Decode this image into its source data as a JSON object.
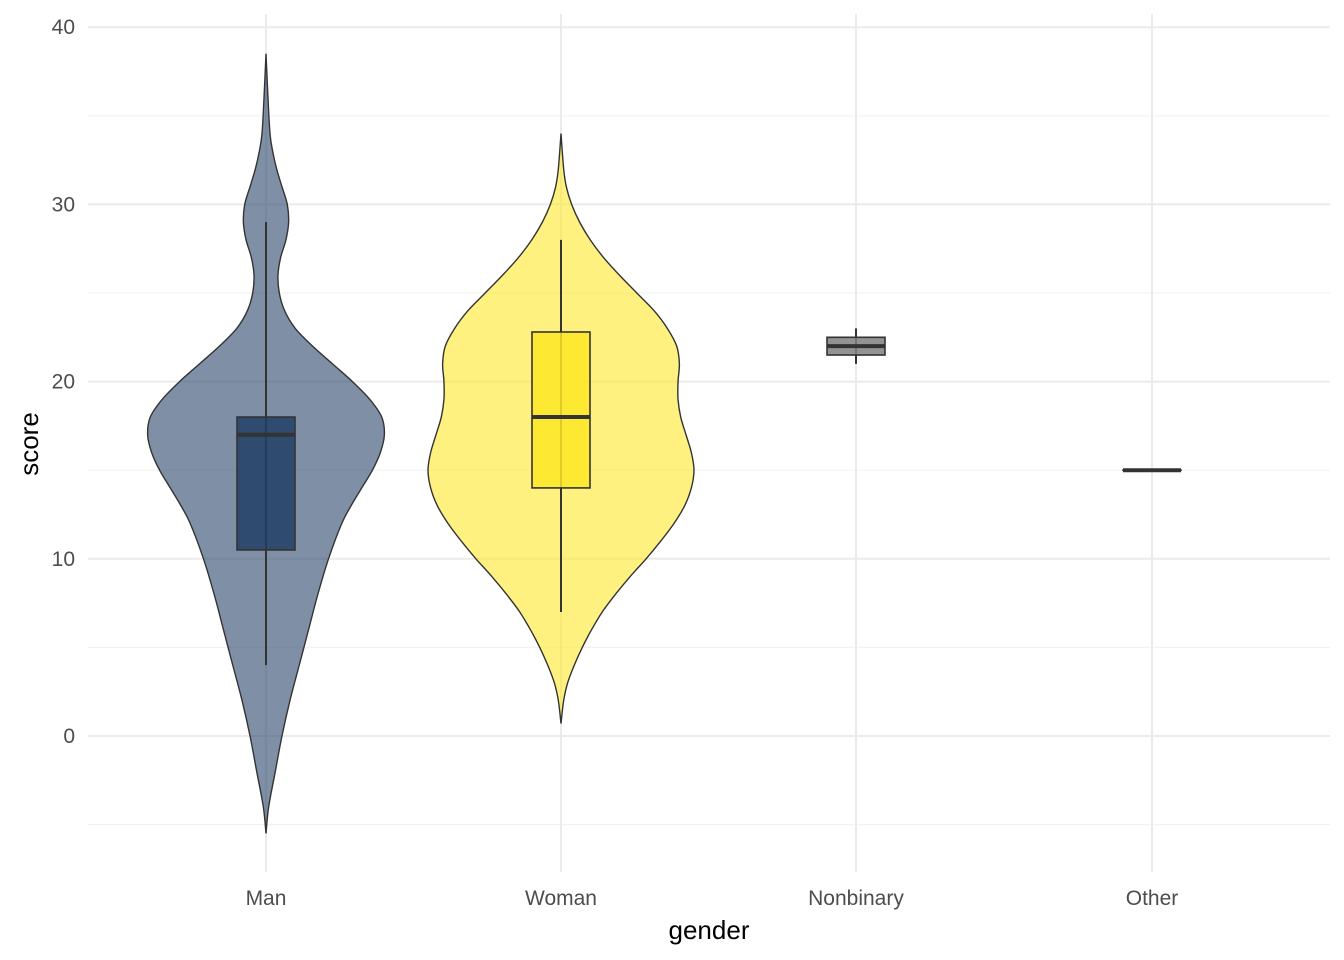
{
  "chart_data": {
    "type": "violin",
    "title": "",
    "xlabel": "gender",
    "ylabel": "score",
    "ylim": [
      -7.5,
      41.5
    ],
    "y_ticks": [
      0,
      10,
      20,
      30,
      40
    ],
    "y_minor_ticks": [
      -5,
      5,
      15,
      25,
      35
    ],
    "grid": true,
    "legend": "none",
    "categories": [
      "Man",
      "Woman",
      "Nonbinary",
      "Other"
    ],
    "groups": [
      {
        "category": "Man",
        "fill": "#223f66",
        "violin": {
          "min": -5.5,
          "max": 38.5,
          "profile": [
            [
              -5.5,
              0
            ],
            [
              -4,
              0.02
            ],
            [
              -2,
              0.07
            ],
            [
              0,
              0.12
            ],
            [
              2,
              0.18
            ],
            [
              4,
              0.25
            ],
            [
              6,
              0.32
            ],
            [
              8,
              0.39
            ],
            [
              10,
              0.47
            ],
            [
              12,
              0.57
            ],
            [
              13,
              0.64
            ],
            [
              14,
              0.72
            ],
            [
              15,
              0.8
            ],
            [
              16,
              0.86
            ],
            [
              17,
              0.89
            ],
            [
              18,
              0.87
            ],
            [
              19,
              0.78
            ],
            [
              20,
              0.65
            ],
            [
              21,
              0.5
            ],
            [
              22,
              0.35
            ],
            [
              23,
              0.22
            ],
            [
              24,
              0.14
            ],
            [
              25,
              0.1
            ],
            [
              26,
              0.09
            ],
            [
              27,
              0.11
            ],
            [
              28,
              0.15
            ],
            [
              29,
              0.17
            ],
            [
              30,
              0.16
            ],
            [
              31,
              0.12
            ],
            [
              32,
              0.08
            ],
            [
              33,
              0.05
            ],
            [
              34,
              0.03
            ],
            [
              36,
              0.015
            ],
            [
              38.5,
              0
            ]
          ]
        },
        "box": {
          "lower_whisker": 4,
          "q1": 10.5,
          "median": 17,
          "q3": 18,
          "upper_whisker": 29
        }
      },
      {
        "category": "Woman",
        "fill": "#fde725",
        "violin": {
          "min": 0.7,
          "max": 34,
          "profile": [
            [
              0.7,
              0
            ],
            [
              2,
              0.02
            ],
            [
              3,
              0.05
            ],
            [
              4,
              0.1
            ],
            [
              5,
              0.16
            ],
            [
              6,
              0.23
            ],
            [
              7,
              0.31
            ],
            [
              8,
              0.41
            ],
            [
              9,
              0.52
            ],
            [
              10,
              0.64
            ],
            [
              11,
              0.75
            ],
            [
              12,
              0.85
            ],
            [
              13,
              0.93
            ],
            [
              14,
              0.98
            ],
            [
              15,
              1.0
            ],
            [
              16,
              0.98
            ],
            [
              17,
              0.94
            ],
            [
              18,
              0.9
            ],
            [
              19,
              0.88
            ],
            [
              20,
              0.88
            ],
            [
              21,
              0.89
            ],
            [
              22,
              0.87
            ],
            [
              23,
              0.8
            ],
            [
              24,
              0.7
            ],
            [
              25,
              0.57
            ],
            [
              26,
              0.44
            ],
            [
              27,
              0.32
            ],
            [
              28,
              0.22
            ],
            [
              29,
              0.14
            ],
            [
              30,
              0.08
            ],
            [
              31,
              0.04
            ],
            [
              32,
              0.02
            ],
            [
              34,
              0
            ]
          ]
        },
        "box": {
          "lower_whisker": 7,
          "q1": 14,
          "median": 18,
          "q3": 22.8,
          "upper_whisker": 28
        }
      },
      {
        "category": "Nonbinary",
        "fill": "#808080",
        "violin": null,
        "box": {
          "lower_whisker": 21,
          "q1": 21.5,
          "median": 22,
          "q3": 22.5,
          "upper_whisker": 23
        }
      },
      {
        "category": "Other",
        "fill": "#808080",
        "violin": null,
        "box": {
          "lower_whisker": 15,
          "q1": 15,
          "median": 15,
          "q3": 15,
          "upper_whisker": 15
        }
      }
    ]
  }
}
